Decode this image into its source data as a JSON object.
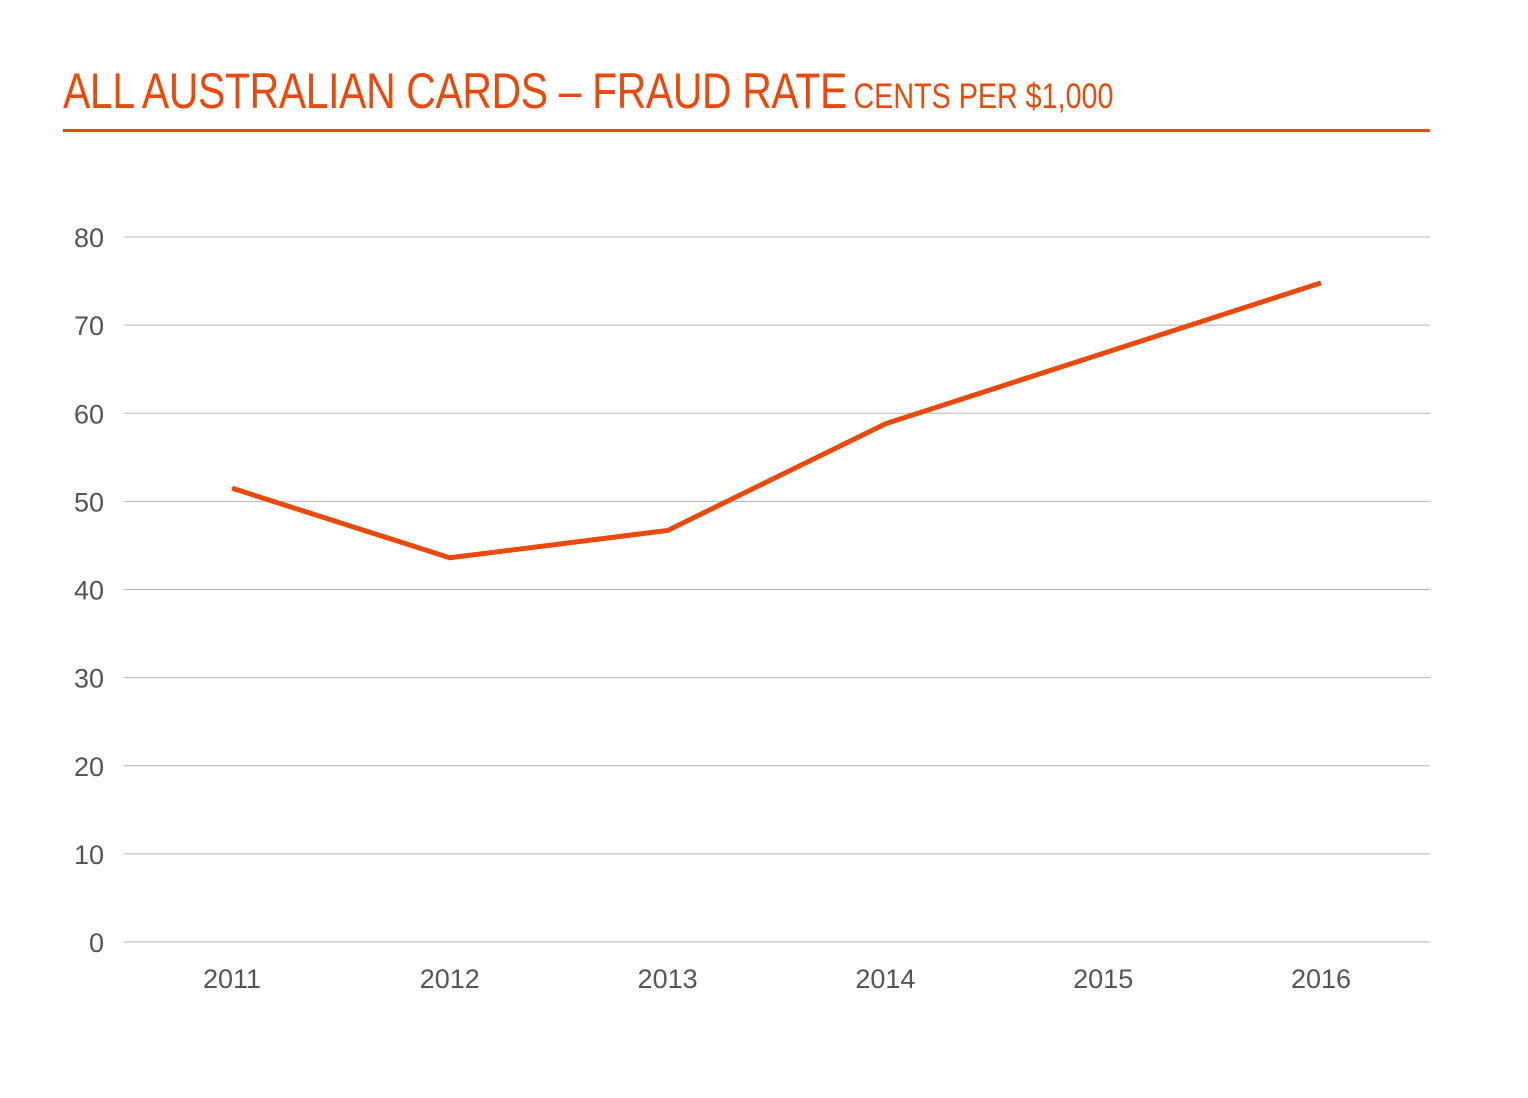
{
  "chart_data": {
    "type": "line",
    "title": "ALL AUSTRALIAN CARDS – FRAUD RATE",
    "subtitle": "CENTS PER $1,000",
    "xlabel": "",
    "ylabel": "",
    "categories": [
      "2011",
      "2012",
      "2013",
      "2014",
      "2015",
      "2016"
    ],
    "series": [
      {
        "name": "Fraud rate",
        "values": [
          51.5,
          43.6,
          46.7,
          58.8,
          66.8,
          74.8
        ],
        "color": "#e84a0e"
      }
    ],
    "ylim": [
      0,
      80
    ],
    "yticks": [
      0,
      10,
      20,
      30,
      40,
      50,
      60,
      70,
      80
    ],
    "grid": true,
    "legend": "none"
  }
}
